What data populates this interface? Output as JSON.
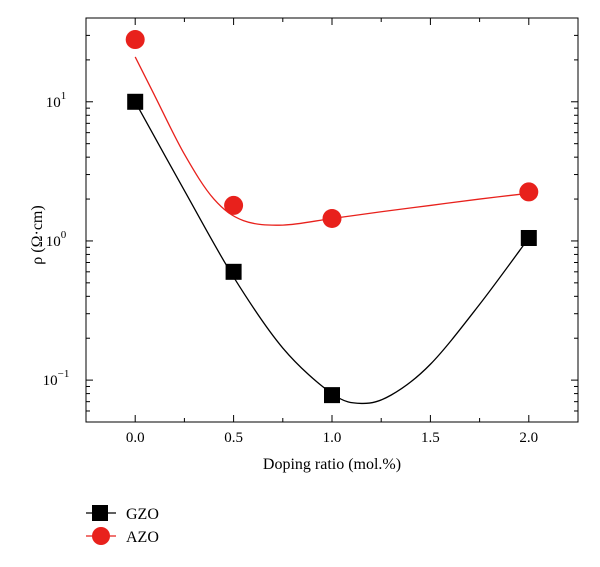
{
  "chart_data": {
    "type": "scatter",
    "title": "",
    "xlabel": "Doping ratio (mol.%)",
    "ylabel": "ρ (Ω·cm)",
    "xlim": [
      -0.25,
      2.25
    ],
    "ylim": [
      0.05,
      40
    ],
    "yscale": "log",
    "grid": false,
    "legend_position": "below-left",
    "x_ticks": [
      0.0,
      0.5,
      1.0,
      1.5,
      2.0
    ],
    "x_tick_labels": [
      "0.0",
      "0.5",
      "1.0",
      "1.5",
      "2.0"
    ],
    "y_ticks": [
      0.1,
      1,
      10
    ],
    "y_tick_labels": [
      {
        "base": "10",
        "exp": "−1"
      },
      {
        "base": "10",
        "exp": "0"
      },
      {
        "base": "10",
        "exp": "1"
      }
    ],
    "series": [
      {
        "name": "GZO",
        "marker": "square",
        "color": "#000000",
        "x": [
          0.0,
          0.5,
          1.0,
          2.0
        ],
        "y": [
          10,
          0.6,
          0.078,
          1.05
        ],
        "fit_curve": {
          "x": [
            0.0,
            0.25,
            0.5,
            0.75,
            1.0,
            1.15,
            1.3,
            1.5,
            1.75,
            2.0
          ],
          "y": [
            10,
            2.3,
            0.55,
            0.17,
            0.08,
            0.068,
            0.078,
            0.13,
            0.35,
            1.05
          ]
        }
      },
      {
        "name": "AZO",
        "marker": "circle",
        "color": "#e8211c",
        "x": [
          0.0,
          0.5,
          1.0,
          2.0
        ],
        "y": [
          28,
          1.8,
          1.45,
          2.25
        ],
        "fit_curve": {
          "x": [
            0.0,
            0.1,
            0.25,
            0.4,
            0.55,
            0.75,
            1.0,
            1.25,
            1.5,
            1.75,
            2.0
          ],
          "y": [
            21,
            11,
            4.2,
            2.0,
            1.4,
            1.3,
            1.45,
            1.62,
            1.8,
            2.0,
            2.2
          ]
        }
      }
    ]
  }
}
